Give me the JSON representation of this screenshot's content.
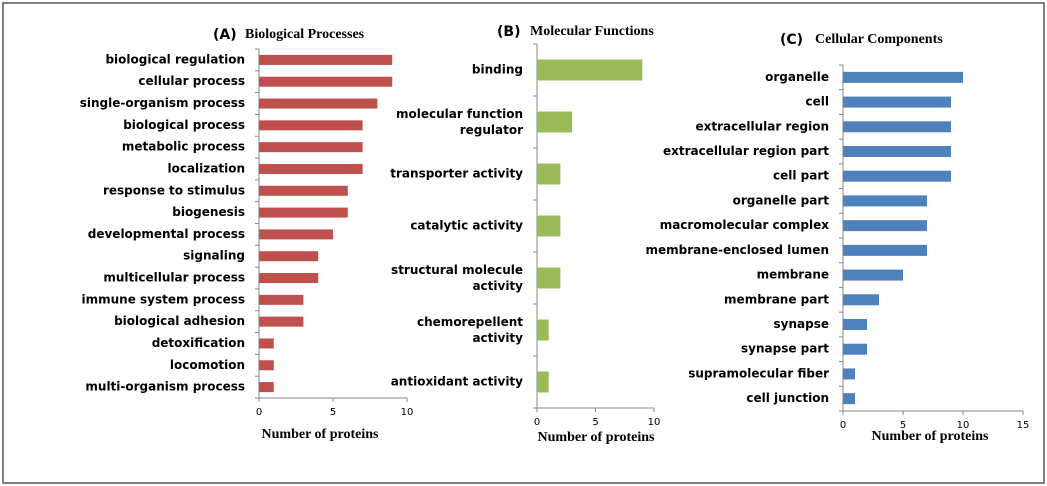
{
  "chart_data": [
    {
      "type": "bar",
      "orientation": "horizontal",
      "panel": "(A)",
      "title": "Biological Processes",
      "x_label": "Number of proteins",
      "color": "#c0504d",
      "categories": [
        "biological regulation",
        "cellular process",
        "single-organism process",
        "biological process",
        "metabolic process",
        "localization",
        "response to stimulus",
        "biogenesis",
        "developmental process",
        "signaling",
        "multicellular process",
        "immune system process",
        "biological adhesion",
        "detoxification",
        "locomotion",
        "multi-organism process"
      ],
      "values": [
        9,
        9,
        8,
        7,
        7,
        7,
        6,
        6,
        5,
        4,
        4,
        3,
        3,
        1,
        1,
        1
      ],
      "xlim": [
        0,
        10
      ],
      "xticks": [
        0,
        5,
        10
      ]
    },
    {
      "type": "bar",
      "orientation": "horizontal",
      "panel": "(B)",
      "title": "Molecular Functions",
      "x_label": "Number of proteins",
      "color": "#9bbb59",
      "categories": [
        "binding",
        "molecular function regulator",
        "transporter activity",
        "catalytic activity",
        "structural molecule activity",
        "chemorepellent activity",
        "antioxidant activity"
      ],
      "values": [
        9,
        3,
        2,
        2,
        2,
        1,
        1
      ],
      "xlim": [
        0,
        10
      ],
      "xticks": [
        0,
        5,
        10
      ]
    },
    {
      "type": "bar",
      "orientation": "horizontal",
      "panel": "(C)",
      "title": "Cellular Components",
      "x_label": "Number of proteins",
      "color": "#4f81bd",
      "categories": [
        "organelle",
        "cell",
        "extracellular region",
        "extracellular region part",
        "cell part",
        "organelle part",
        "macromolecular complex",
        "membrane-enclosed lumen",
        "membrane",
        "membrane part",
        "synapse",
        "synapse part",
        "supramolecular fiber",
        "cell junction"
      ],
      "values": [
        10,
        9,
        9,
        9,
        9,
        7,
        7,
        7,
        5,
        3,
        2,
        2,
        1,
        1
      ],
      "xlim": [
        0,
        15
      ],
      "xticks": [
        0,
        5,
        10,
        15
      ]
    }
  ]
}
